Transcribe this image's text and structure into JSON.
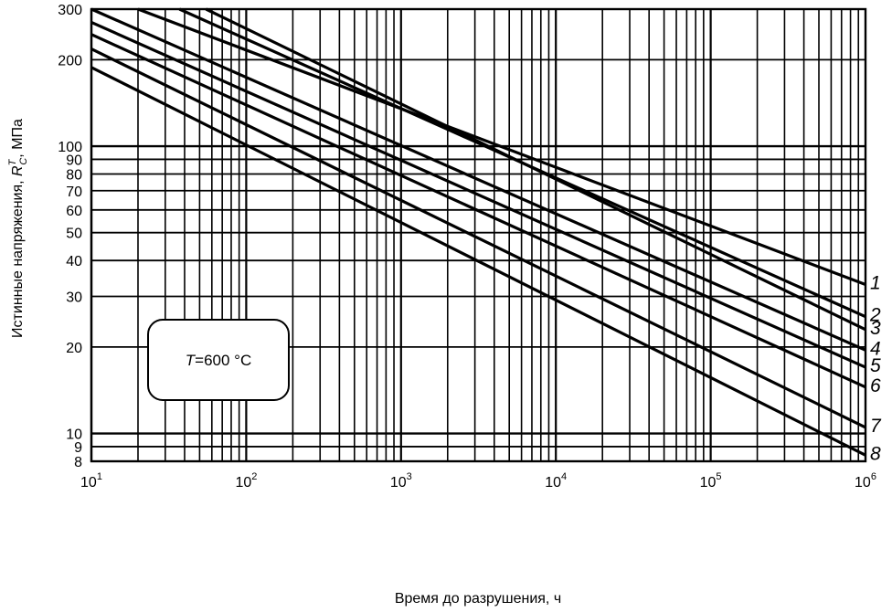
{
  "chart_data": {
    "type": "line",
    "xscale": "log",
    "yscale": "log",
    "xlim": [
      10,
      1000000
    ],
    "ylim": [
      8,
      300
    ],
    "grid": true,
    "title": "",
    "xlabel": "Время до разрушения, ч",
    "ylabel": {
      "prefix": "Истинные напряжения, ",
      "symbol": "R",
      "superscript": "T",
      "subscript": "C",
      "suffix": ", МПа"
    },
    "x_ticks": [
      {
        "base": "10",
        "exp": "1"
      },
      {
        "base": "10",
        "exp": "2"
      },
      {
        "base": "10",
        "exp": "3"
      },
      {
        "base": "10",
        "exp": "4"
      },
      {
        "base": "10",
        "exp": "5"
      },
      {
        "base": "10",
        "exp": "6"
      }
    ],
    "y_ticks": [
      "8",
      "9",
      "10",
      "20",
      "30",
      "40",
      "50",
      "60",
      "70",
      "80",
      "90",
      "100",
      "200",
      "300"
    ],
    "annotation": {
      "symbol": "T",
      "text": "=600 °C"
    },
    "series": [
      {
        "name": "1",
        "x": [
          20,
          1000000
        ],
        "y": [
          300,
          33
        ]
      },
      {
        "name": "2",
        "x": [
          37,
          1000000
        ],
        "y": [
          300,
          25.5
        ]
      },
      {
        "name": "3",
        "x": [
          55,
          1000000
        ],
        "y": [
          300,
          23
        ]
      },
      {
        "name": "4",
        "x": [
          10,
          1000000
        ],
        "y": [
          300,
          19.5
        ]
      },
      {
        "name": "5",
        "x": [
          10,
          1000000
        ],
        "y": [
          270,
          17
        ]
      },
      {
        "name": "6",
        "x": [
          10,
          1000000
        ],
        "y": [
          245,
          14.5
        ]
      },
      {
        "name": "7",
        "x": [
          10,
          1000000
        ],
        "y": [
          218,
          10.5
        ]
      },
      {
        "name": "8",
        "x": [
          10,
          1000000
        ],
        "y": [
          188,
          8.4
        ]
      }
    ]
  }
}
